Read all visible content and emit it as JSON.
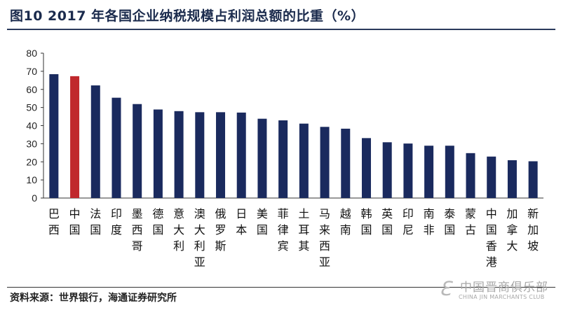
{
  "header": {
    "title": "图10 2017 年各国企业纳税规模占利润总额的比重（%）"
  },
  "footer": {
    "source": "资料来源：世界银行，海通证券研究所"
  },
  "watermark": {
    "text_cn": "中国晋商俱乐部",
    "text_en": "CHINA JIN MARCHANTS CLUB",
    "icon": "ze-logo-icon"
  },
  "colors": {
    "bar": "#1a2a5e",
    "highlight": "#c0282d",
    "axis": "#333333"
  },
  "chart_data": {
    "type": "bar",
    "title": "2017 年各国企业纳税规模占利润总额的比重（%）",
    "categories": [
      "巴西",
      "中国",
      "法国",
      "印度",
      "墨西哥",
      "德国",
      "意大利",
      "澳大利亚",
      "俄罗斯",
      "日本",
      "美国",
      "菲律宾",
      "土耳其",
      "马来西亚",
      "越南",
      "韩国",
      "英国",
      "印尼",
      "南非",
      "泰国",
      "蒙古",
      "中国香港",
      "加拿大",
      "新加坡"
    ],
    "values": [
      68.4,
      67.3,
      62.2,
      55.4,
      51.9,
      48.9,
      48.0,
      47.4,
      47.4,
      47.2,
      43.8,
      42.9,
      41.1,
      39.3,
      38.3,
      33.1,
      30.8,
      30.1,
      28.9,
      28.9,
      24.8,
      22.9,
      20.9,
      20.3
    ],
    "highlight_category": "中国",
    "ylim": [
      0,
      80
    ],
    "yticks": [
      0,
      10,
      20,
      30,
      40,
      50,
      60,
      70,
      80
    ],
    "xlabel": "",
    "ylabel": "",
    "grid": false,
    "legend": "none"
  }
}
